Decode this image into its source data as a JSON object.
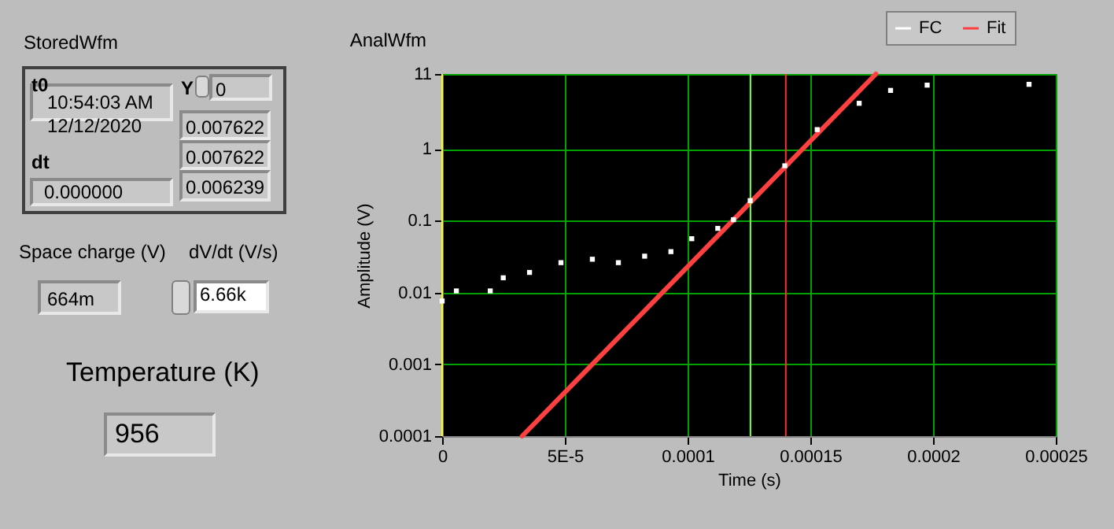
{
  "chart_data": [
    {
      "type": "other",
      "annotations": [
        "StoredWfm",
        "t0",
        "10:54:03 AM",
        "12/12/2020",
        "dt",
        "0.000000",
        "Y",
        "0",
        "0.007622",
        "0.007622",
        "0.006239",
        "Space charge (V)",
        "664m",
        "dV/dt (V/s)",
        "6.66k",
        "Temperature (K)",
        "956"
      ]
    },
    {
      "type": "line",
      "title": "AnalWfm",
      "xlabel": "Time (s)",
      "ylabel": "Amplitude (V)",
      "log": "y",
      "grid": true,
      "legend": "top right",
      "line_style": "solid",
      "xlim": [
        0,
        0.00025
      ],
      "xticks": [
        0,
        {
          "value": 5e-05,
          "label": "5E-5"
        },
        0.0001,
        0.00015,
        0.0002,
        0.00025
      ],
      "ylim": [
        0.0001,
        11
      ],
      "yticks": [
        0.0001,
        0.001,
        0.01,
        0.1,
        1,
        11
      ],
      "series": [
        {
          "name": "FC",
          "type": "scatter",
          "marker": "square",
          "color": "#ffffff",
          "x": [
            0,
            5.8e-06,
            1.96e-05,
            2.49e-05,
            3.56e-05,
            4.84e-05,
            6.12e-05,
            7.18e-05,
            8.25e-05,
            9.32e-05,
            0.0001017,
            0.0001123,
            0.0001187,
            0.0001255,
            0.0001396,
            0.0001528,
            0.0001699,
            0.0001827,
            0.0001976,
            0.0002391
          ],
          "values": [
            0.0076,
            0.0105,
            0.0105,
            0.016,
            0.019,
            0.026,
            0.029,
            0.026,
            0.032,
            0.037,
            0.056,
            0.078,
            0.103,
            0.19,
            0.58,
            1.85,
            4.3,
            6.5,
            7.7,
            7.9
          ]
        },
        {
          "name": "Fit",
          "type": "line",
          "color": "#ff4040",
          "x": [
            3.26e-05,
            0.0001767
          ],
          "values": [
            0.0001,
            11
          ]
        }
      ],
      "ref_lines": [
        {
          "axis": "x",
          "value": 0,
          "color": "#ffff00"
        },
        {
          "axis": "x",
          "value": 0.0001256,
          "color": "#80ff40"
        },
        {
          "axis": "x",
          "value": 0.00014,
          "color": "#ff3030"
        }
      ]
    }
  ]
}
